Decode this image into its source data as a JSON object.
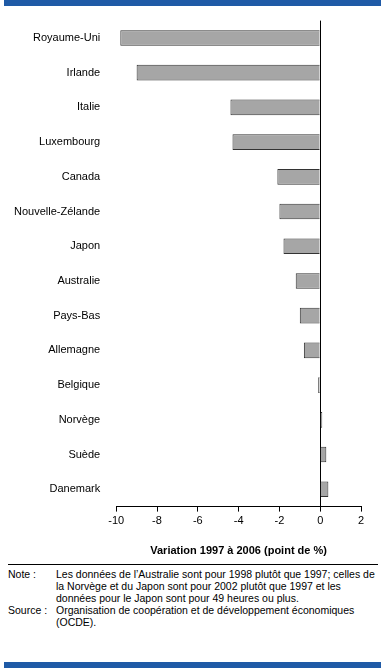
{
  "chart_data": {
    "type": "bar",
    "orientation": "horizontal",
    "categories": [
      "Royaume-Uni",
      "Irlande",
      "Italie",
      "Luxembourg",
      "Canada",
      "Nouvelle-Zélande",
      "Japon",
      "Australie",
      "Pays-Bas",
      "Allemagne",
      "Belgique",
      "Norvège",
      "Suède",
      "Danemark"
    ],
    "values": [
      -9.8,
      -9.0,
      -4.4,
      -4.3,
      -2.1,
      -2.0,
      -1.8,
      -1.2,
      -1.0,
      -0.8,
      -0.1,
      0.1,
      0.3,
      0.4
    ],
    "color": "#a6a6a6",
    "xlim": [
      -10,
      2
    ],
    "xticks": [
      -10,
      -8,
      -6,
      -4,
      -2,
      0,
      2
    ],
    "x_label": "Variation 1997 à 2006 (point de %)",
    "grid": false,
    "notes": [
      {
        "label": "Note :",
        "text": "Les données de l’Australie sont pour 1998 plutôt que 1997; celles de la Norvège et du Japon sont pour 2002 plutôt que 1997 et les données pour le Japon sont pour 49 heures ou plus."
      },
      {
        "label": "Source :",
        "text": "Organisation de coopération et de développement économiques (OCDE)."
      }
    ]
  }
}
